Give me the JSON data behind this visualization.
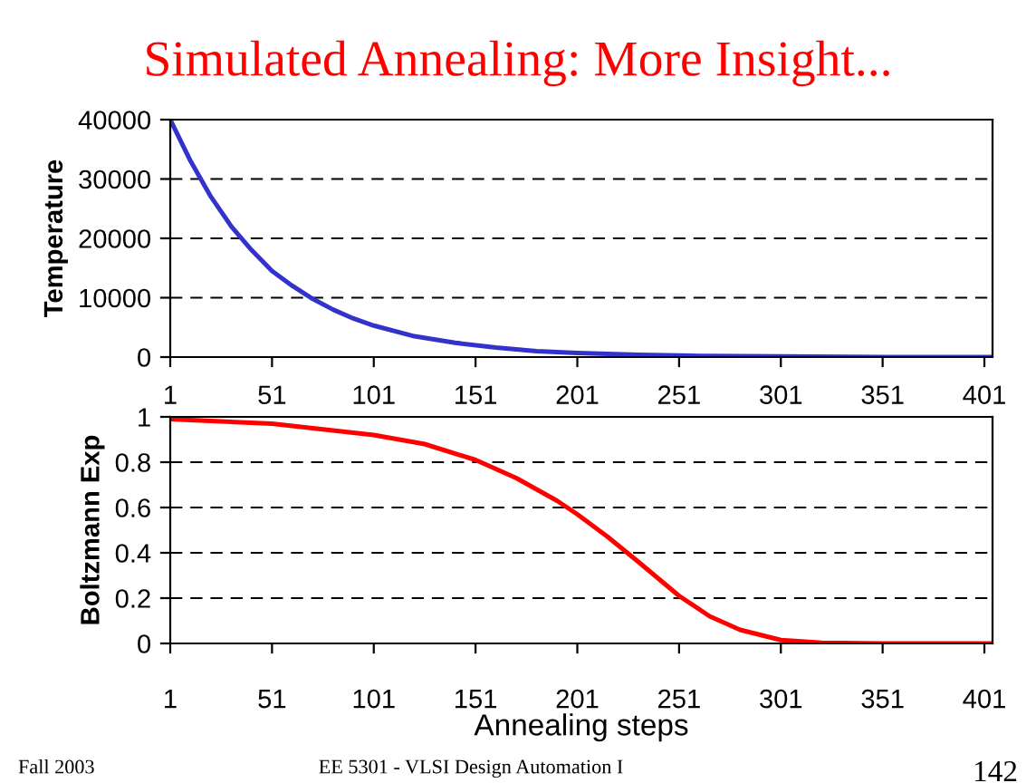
{
  "chart_data": [
    {
      "type": "line",
      "title": "Simulated Annealing: More Insight...",
      "ylabel": "Temperature",
      "x": [
        1,
        11,
        21,
        31,
        41,
        51,
        61,
        71,
        81,
        91,
        101,
        121,
        141,
        161,
        181,
        201,
        231,
        261,
        301,
        351,
        405
      ],
      "series": [
        {
          "color": "#3333cc",
          "values": [
            40000,
            33000,
            27000,
            22000,
            18000,
            14500,
            12000,
            9800,
            8000,
            6500,
            5300,
            3500,
            2400,
            1600,
            1000,
            700,
            400,
            200,
            100,
            0,
            0
          ]
        }
      ],
      "xlim": [
        1,
        405
      ],
      "xticks": [
        1,
        51,
        101,
        151,
        201,
        251,
        301,
        351,
        401
      ],
      "ylim": [
        0,
        40000
      ],
      "yticks": [
        0,
        10000,
        20000,
        30000,
        40000
      ],
      "grid": "y",
      "line_style": "solid",
      "marker": "none",
      "legend": false
    },
    {
      "type": "line",
      "ylabel": "Boltzmann Exp",
      "xlabel": "Annealing steps",
      "x": [
        1,
        51,
        101,
        126,
        151,
        171,
        191,
        201,
        216,
        231,
        251,
        266,
        281,
        301,
        321,
        351,
        405
      ],
      "series": [
        {
          "color": "#ff0000",
          "values": [
            0.99,
            0.97,
            0.92,
            0.88,
            0.81,
            0.73,
            0.63,
            0.57,
            0.47,
            0.36,
            0.21,
            0.12,
            0.06,
            0.015,
            0.003,
            0,
            0
          ]
        }
      ],
      "xlim": [
        1,
        405
      ],
      "xticks": [
        1,
        51,
        101,
        151,
        201,
        251,
        301,
        351,
        401
      ],
      "ylim": [
        0,
        1
      ],
      "yticks": [
        0,
        0.2,
        0.4,
        0.6,
        0.8,
        1
      ],
      "grid": "y",
      "line_style": "solid",
      "marker": "none",
      "legend": false,
      "annotations": [
        "Fall 2003",
        "EE 5301 - VLSI Design Automation I",
        "142"
      ]
    }
  ]
}
